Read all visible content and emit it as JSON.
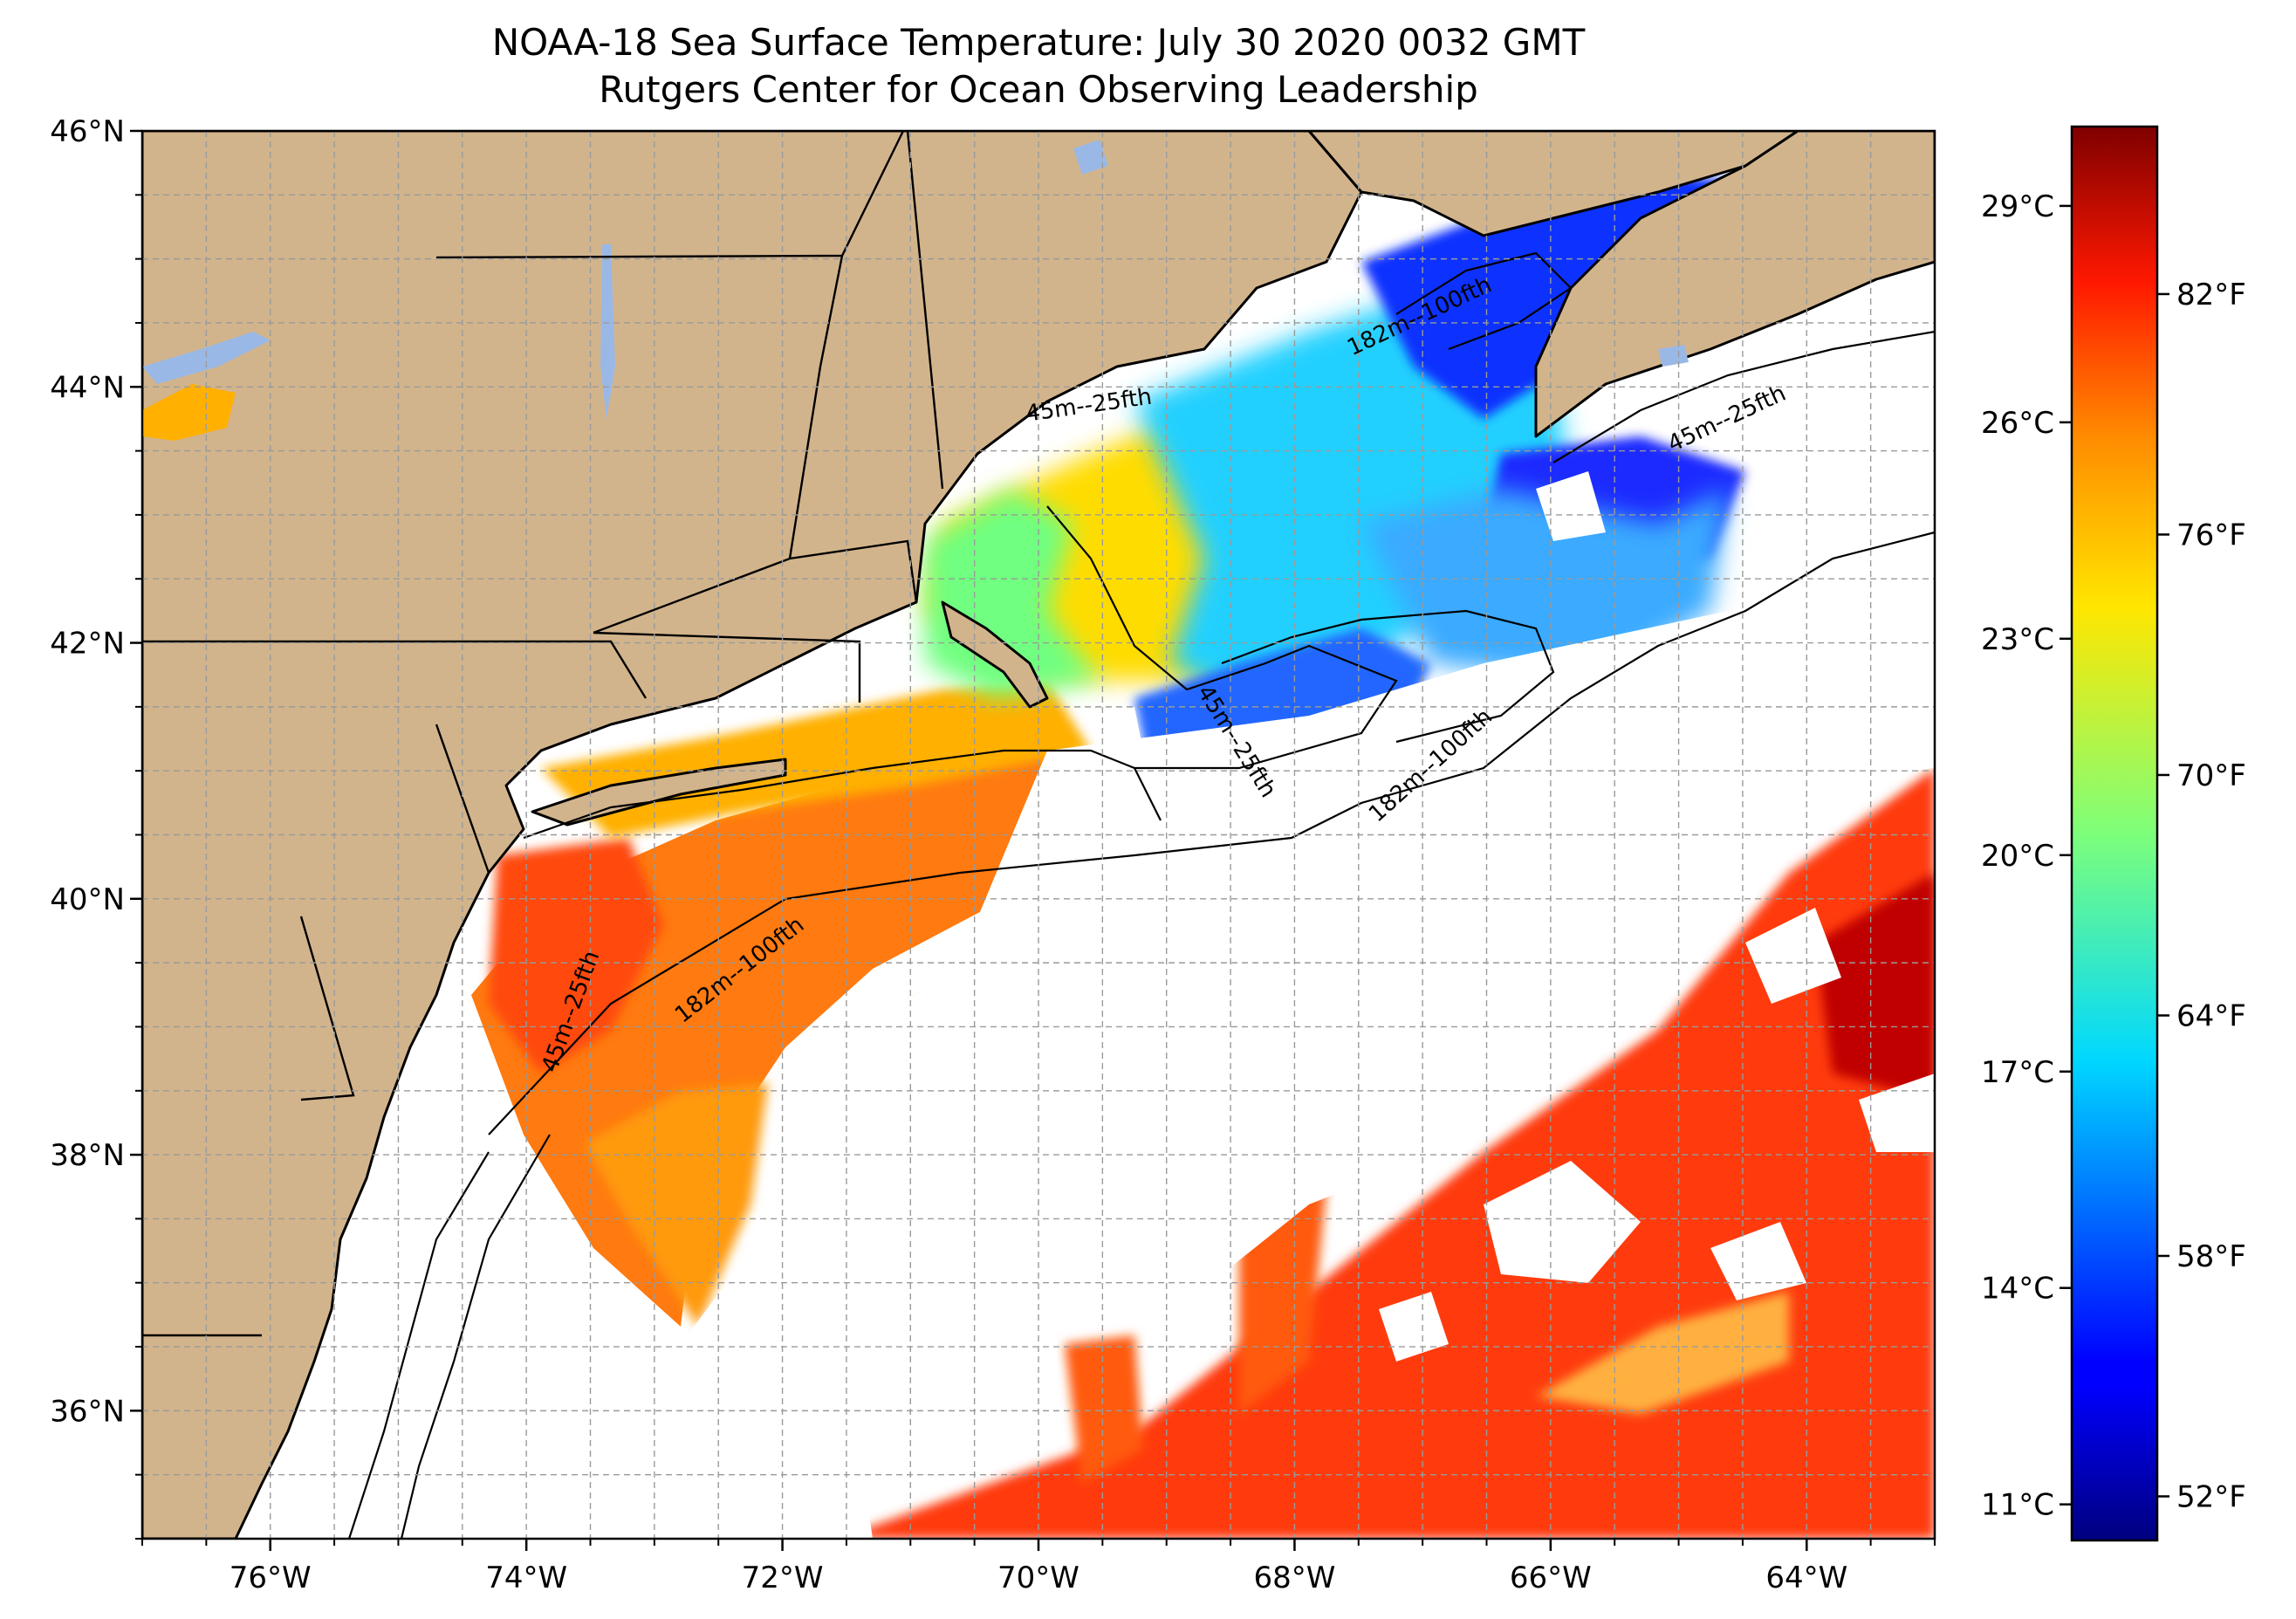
{
  "title": {
    "line1": "NOAA-18 Sea Surface Temperature: July 30 2020 0032 GMT",
    "line2": "Rutgers Center for Ocean Observing Leadership"
  },
  "map": {
    "lon_range": [
      -77.0,
      -63.0
    ],
    "lat_range": [
      35.0,
      46.0
    ],
    "lon_ticks": [
      {
        "value": -76,
        "label": "76°W"
      },
      {
        "value": -74,
        "label": "74°W"
      },
      {
        "value": -72,
        "label": "72°W"
      },
      {
        "value": -70,
        "label": "70°W"
      },
      {
        "value": -68,
        "label": "68°W"
      },
      {
        "value": -66,
        "label": "66°W"
      },
      {
        "value": -64,
        "label": "64°W"
      }
    ],
    "lat_ticks": [
      {
        "value": 36,
        "label": "36°N"
      },
      {
        "value": 38,
        "label": "38°N"
      },
      {
        "value": 40,
        "label": "40°N"
      },
      {
        "value": 42,
        "label": "42°N"
      },
      {
        "value": 44,
        "label": "44°N"
      },
      {
        "value": 46,
        "label": "46°N"
      }
    ],
    "gridlines": "dashed, every 0.5°",
    "colors": {
      "land": "#d2b48c",
      "lakes": "#9ab8e6",
      "no_data": "#ffffff",
      "coastline": "#000000"
    },
    "contour_labels": [
      {
        "text": "45m--25fth",
        "lon": -69.6,
        "lat": 43.8,
        "angle": -8
      },
      {
        "text": "182m--100fth",
        "lon": -67.0,
        "lat": 44.5,
        "angle": -25
      },
      {
        "text": "45m--25fth",
        "lon": -64.6,
        "lat": 43.7,
        "angle": -25
      },
      {
        "text": "45m--25fth",
        "lon": -68.5,
        "lat": 41.2,
        "angle": 58
      },
      {
        "text": "182m--100fth",
        "lon": -66.9,
        "lat": 41.0,
        "angle": -42
      },
      {
        "text": "182m--100fth",
        "lon": -72.3,
        "lat": 39.4,
        "angle": -38
      },
      {
        "text": "45m--25fth",
        "lon": -73.6,
        "lat": 39.1,
        "angle": -70
      }
    ]
  },
  "colorbar": {
    "colormap": "jet",
    "celsius_range": [
      10.5,
      30.1
    ],
    "celsius_ticks": [
      {
        "value": 11,
        "label": "11°C"
      },
      {
        "value": 14,
        "label": "14°C"
      },
      {
        "value": 17,
        "label": "17°C"
      },
      {
        "value": 20,
        "label": "20°C"
      },
      {
        "value": 23,
        "label": "23°C"
      },
      {
        "value": 26,
        "label": "26°C"
      },
      {
        "value": 29,
        "label": "29°C"
      }
    ],
    "fahrenheit_ticks": [
      {
        "value": 52,
        "label": "52°F"
      },
      {
        "value": 58,
        "label": "58°F"
      },
      {
        "value": 64,
        "label": "64°F"
      },
      {
        "value": 70,
        "label": "70°F"
      },
      {
        "value": 76,
        "label": "76°F"
      },
      {
        "value": 82,
        "label": "82°F"
      }
    ]
  }
}
